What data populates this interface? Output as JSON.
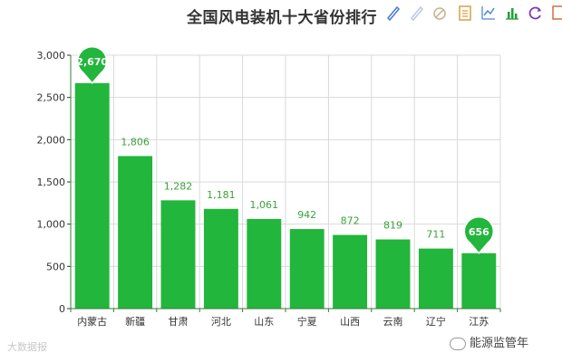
{
  "chart_data": {
    "type": "bar",
    "title": "全国风电装机十大省份排行",
    "categories": [
      "内蒙古",
      "新疆",
      "甘肃",
      "河北",
      "山东",
      "宁夏",
      "山西",
      "云南",
      "辽宁",
      "江苏"
    ],
    "values": [
      2670,
      1806,
      1282,
      1181,
      1061,
      942,
      872,
      819,
      711,
      656
    ],
    "value_labels": [
      "2,670",
      "1,806",
      "1,282",
      "1,181",
      "1,061",
      "942",
      "872",
      "819",
      "711",
      "656"
    ],
    "highlighted": [
      0,
      9
    ],
    "ylim": [
      0,
      3000
    ],
    "yticks": [
      0,
      500,
      1000,
      1500,
      2000,
      2500,
      3000
    ],
    "ytick_labels": [
      "0",
      "500",
      "1,000",
      "1,500",
      "2,000",
      "2,500",
      "3,000"
    ],
    "xlabel": "",
    "ylabel": "",
    "grid": true,
    "bar_color": "#22b63c",
    "pin_color": "#22b63c",
    "label_color": "#3aa33a"
  },
  "toolbox": {
    "icons": [
      "pencil-icon",
      "pencil-light-icon",
      "eraser-icon",
      "data-view-icon",
      "line-chart-icon",
      "bar-chart-icon",
      "refresh-icon",
      "save-image-icon"
    ]
  },
  "watermarks": {
    "left": "大数据报",
    "right": "能源监管年"
  }
}
